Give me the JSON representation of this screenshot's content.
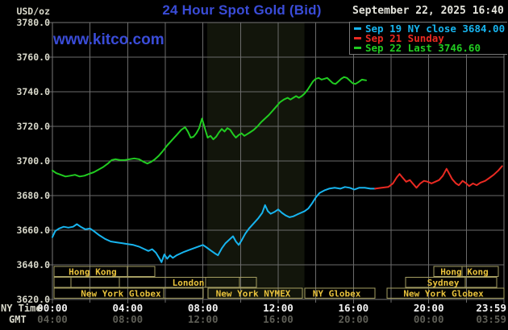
{
  "header": {
    "units_label": "USD/oz",
    "title": "24 Hour Spot Gold (Bid)",
    "datetime": "September 22, 2025 16:40",
    "watermark": "www.kitco.com"
  },
  "colors": {
    "title_blue": "#3a4cd8",
    "grid": "#6b6b6b",
    "border": "#787878",
    "band": "#12150b",
    "axis_text": "#d8d8ca",
    "ny_time_text": "#f4f4f4",
    "gmt_text": "#5e5e56",
    "session_border": "#a59e62",
    "session_text": "#e9c33c",
    "cyan": "#17b4ee",
    "red": "#ea2a22",
    "green": "#21cc21"
  },
  "legend": {
    "items": [
      {
        "label": "Sep 19 NY close 3684.00",
        "color": "#17b4ee"
      },
      {
        "label": "Sep 21 Sunday",
        "color": "#ea2a22"
      },
      {
        "label": "Sep 22 Last 3746.60",
        "color": "#21cc21"
      }
    ]
  },
  "axes": {
    "x_ny_label": "NY Time",
    "x_gmt_label": "GMT"
  },
  "sessions": {
    "rows": [
      {
        "boxes": [
          {
            "label": "Hong Kong",
            "start_h": 0.09,
            "end_h": 5.44,
            "dividers_h": [
              3.99
            ],
            "label_center_h": 2.14
          },
          {
            "label": "Hong Kong",
            "start_h": 20.27,
            "end_h": 23.7,
            "dividers_h": [
              21.77
            ],
            "label_center_h": 21.9
          }
        ]
      },
      {
        "boxes": [
          {
            "label": "London",
            "start_h": 0.09,
            "end_h": 10.84,
            "dividers_h": [
              0.99,
              3.56,
              8.14,
              9.94
            ],
            "label_center_h": 7.22
          },
          {
            "label": "Sydney",
            "start_h": 18.77,
            "end_h": 23.61,
            "dividers_h": [
              21.94
            ],
            "label_center_h": 20.77
          }
        ]
      },
      {
        "boxes": [
          {
            "label": "New York Globex",
            "start_h": 0.09,
            "end_h": 8.01,
            "dividers_h": [
              5.91
            ],
            "label_center_h": 3.64
          },
          {
            "label": "New York NYMEX",
            "start_h": 8.27,
            "end_h": 13.29,
            "dividers_h": [],
            "label_center_h": 10.67
          },
          {
            "label": "NY Globex",
            "start_h": 13.41,
            "end_h": 17.14,
            "dividers_h": [],
            "label_center_h": 15.11
          },
          {
            "label": "New York Globex",
            "start_h": 17.79,
            "end_h": 24.0,
            "dividers_h": [],
            "label_center_h": 20.79
          }
        ]
      }
    ]
  },
  "chart_data": {
    "type": "line",
    "title": "24 Hour Spot Gold (Bid)",
    "ylabel": "USD/oz",
    "grid": true,
    "legend_position": "top-right",
    "shaded_region_hours": [
      8.23,
      13.4
    ],
    "y_axis": {
      "range": [
        3620,
        3780
      ],
      "tick_step": 20,
      "tick_labels": [
        "3780.0",
        "3760.0",
        "3740.0",
        "3720.0",
        "3700.0",
        "3680.0",
        "3660.0",
        "3640.0",
        "3620.0"
      ]
    },
    "x_axis": {
      "range_hours": [
        0,
        24
      ],
      "tick_hours": [
        0,
        4,
        8,
        12,
        16,
        20,
        24
      ],
      "tick_labels_ny": [
        "00:00",
        "04:00",
        "08:00",
        "12:00",
        "16:00",
        "20:00",
        "23:59"
      ],
      "tick_labels_gmt": [
        "04:00",
        "08:00",
        "12:00",
        "16:00",
        "20:00",
        "00:00",
        "03:59"
      ]
    },
    "series": [
      {
        "id": "sep19",
        "name": "Sep 19 NY close 3684.00",
        "color": "#17b4ee",
        "points": [
          [
            0,
            3656
          ],
          [
            0.15,
            3659.5
          ],
          [
            0.35,
            3661
          ],
          [
            0.6,
            3662
          ],
          [
            0.85,
            3661.5
          ],
          [
            1.1,
            3662
          ],
          [
            1.3,
            3663.5
          ],
          [
            1.5,
            3662
          ],
          [
            1.75,
            3660.5
          ],
          [
            2,
            3661
          ],
          [
            2.2,
            3659.5
          ],
          [
            2.5,
            3657
          ],
          [
            2.8,
            3655
          ],
          [
            3.1,
            3653.5
          ],
          [
            3.4,
            3653
          ],
          [
            3.7,
            3652.5
          ],
          [
            4,
            3652
          ],
          [
            4.3,
            3651.5
          ],
          [
            4.6,
            3650.5
          ],
          [
            4.9,
            3649
          ],
          [
            5.1,
            3648
          ],
          [
            5.3,
            3649
          ],
          [
            5.5,
            3647
          ],
          [
            5.7,
            3643.5
          ],
          [
            5.8,
            3641.5
          ],
          [
            5.95,
            3646
          ],
          [
            6.1,
            3643.5
          ],
          [
            6.25,
            3645.5
          ],
          [
            6.4,
            3644
          ],
          [
            6.6,
            3645.5
          ],
          [
            6.8,
            3646.5
          ],
          [
            7,
            3647.5
          ],
          [
            7.25,
            3648.5
          ],
          [
            7.5,
            3649.5
          ],
          [
            7.75,
            3650.5
          ],
          [
            8,
            3651.5
          ],
          [
            8.2,
            3650
          ],
          [
            8.45,
            3648
          ],
          [
            8.65,
            3646.5
          ],
          [
            8.8,
            3645.5
          ],
          [
            9,
            3649.5
          ],
          [
            9.2,
            3652.5
          ],
          [
            9.45,
            3655
          ],
          [
            9.6,
            3656.5
          ],
          [
            9.75,
            3653.5
          ],
          [
            9.9,
            3651.5
          ],
          [
            10.05,
            3654
          ],
          [
            10.25,
            3658
          ],
          [
            10.45,
            3661
          ],
          [
            10.7,
            3664
          ],
          [
            10.95,
            3667
          ],
          [
            11.15,
            3670
          ],
          [
            11.3,
            3674.5
          ],
          [
            11.45,
            3671
          ],
          [
            11.6,
            3669.5
          ],
          [
            11.8,
            3670.5
          ],
          [
            12,
            3672
          ],
          [
            12.2,
            3670
          ],
          [
            12.4,
            3668.5
          ],
          [
            12.6,
            3667.5
          ],
          [
            12.8,
            3668
          ],
          [
            13,
            3669
          ],
          [
            13.2,
            3670
          ],
          [
            13.4,
            3671
          ],
          [
            13.6,
            3672.5
          ],
          [
            13.8,
            3675.5
          ],
          [
            14,
            3679
          ],
          [
            14.2,
            3681.5
          ],
          [
            14.45,
            3683
          ],
          [
            14.7,
            3684
          ],
          [
            15,
            3684.5
          ],
          [
            15.3,
            3684
          ],
          [
            15.55,
            3685
          ],
          [
            15.8,
            3684.5
          ],
          [
            16.05,
            3683.5
          ],
          [
            16.3,
            3684.5
          ],
          [
            16.6,
            3684.5
          ],
          [
            16.9,
            3684
          ],
          [
            17.15,
            3684
          ]
        ]
      },
      {
        "id": "sep21",
        "name": "Sep 21 Sunday",
        "color": "#ea2a22",
        "points": [
          [
            17.15,
            3684
          ],
          [
            17.5,
            3684.5
          ],
          [
            17.85,
            3685
          ],
          [
            18.1,
            3687
          ],
          [
            18.3,
            3690.5
          ],
          [
            18.45,
            3692.5
          ],
          [
            18.6,
            3690.5
          ],
          [
            18.8,
            3688
          ],
          [
            19,
            3689
          ],
          [
            19.15,
            3687
          ],
          [
            19.35,
            3684.5
          ],
          [
            19.55,
            3687
          ],
          [
            19.75,
            3688.5
          ],
          [
            19.95,
            3688
          ],
          [
            20.15,
            3687
          ],
          [
            20.35,
            3688
          ],
          [
            20.55,
            3689
          ],
          [
            20.75,
            3691.5
          ],
          [
            20.95,
            3695.5
          ],
          [
            21.1,
            3692.5
          ],
          [
            21.25,
            3689.5
          ],
          [
            21.45,
            3687
          ],
          [
            21.6,
            3686
          ],
          [
            21.8,
            3688.5
          ],
          [
            22,
            3687
          ],
          [
            22.15,
            3685.5
          ],
          [
            22.35,
            3687
          ],
          [
            22.55,
            3686
          ],
          [
            22.75,
            3687.5
          ],
          [
            23,
            3688.5
          ],
          [
            23.2,
            3690
          ],
          [
            23.45,
            3692
          ],
          [
            23.7,
            3694.5
          ],
          [
            23.9,
            3697
          ]
        ]
      },
      {
        "id": "sep22",
        "name": "Sep 22 Last 3746.60",
        "color": "#21cc21",
        "points": [
          [
            0,
            3694.5
          ],
          [
            0.2,
            3693
          ],
          [
            0.45,
            3692
          ],
          [
            0.7,
            3691
          ],
          [
            0.95,
            3691.5
          ],
          [
            1.2,
            3692
          ],
          [
            1.45,
            3691
          ],
          [
            1.7,
            3691.5
          ],
          [
            1.95,
            3692.5
          ],
          [
            2.2,
            3693.5
          ],
          [
            2.45,
            3695
          ],
          [
            2.7,
            3696.5
          ],
          [
            2.95,
            3698.5
          ],
          [
            3.15,
            3700.5
          ],
          [
            3.35,
            3701
          ],
          [
            3.6,
            3700.5
          ],
          [
            3.85,
            3700.5
          ],
          [
            4.1,
            3701
          ],
          [
            4.35,
            3701.5
          ],
          [
            4.6,
            3701
          ],
          [
            4.85,
            3699.5
          ],
          [
            5.05,
            3698.5
          ],
          [
            5.25,
            3699.5
          ],
          [
            5.45,
            3701
          ],
          [
            5.65,
            3703
          ],
          [
            5.85,
            3705.5
          ],
          [
            6.1,
            3709
          ],
          [
            6.35,
            3712
          ],
          [
            6.6,
            3715
          ],
          [
            6.85,
            3718
          ],
          [
            7.05,
            3719.5
          ],
          [
            7.2,
            3717
          ],
          [
            7.35,
            3713.5
          ],
          [
            7.5,
            3714
          ],
          [
            7.65,
            3716
          ],
          [
            7.8,
            3719
          ],
          [
            7.95,
            3724.5
          ],
          [
            8.1,
            3719
          ],
          [
            8.25,
            3713.5
          ],
          [
            8.4,
            3714.5
          ],
          [
            8.55,
            3712.5
          ],
          [
            8.7,
            3714
          ],
          [
            8.85,
            3716.5
          ],
          [
            9,
            3718.5
          ],
          [
            9.15,
            3717
          ],
          [
            9.3,
            3719
          ],
          [
            9.45,
            3718
          ],
          [
            9.6,
            3715.5
          ],
          [
            9.75,
            3713.5
          ],
          [
            9.9,
            3715
          ],
          [
            10.05,
            3716
          ],
          [
            10.2,
            3714.5
          ],
          [
            10.35,
            3715.5
          ],
          [
            10.5,
            3716.5
          ],
          [
            10.7,
            3718
          ],
          [
            10.9,
            3720
          ],
          [
            11.1,
            3722.5
          ],
          [
            11.3,
            3724.5
          ],
          [
            11.5,
            3726.5
          ],
          [
            11.7,
            3729
          ],
          [
            11.9,
            3731.5
          ],
          [
            12.1,
            3734
          ],
          [
            12.3,
            3735.5
          ],
          [
            12.5,
            3736.5
          ],
          [
            12.65,
            3735.5
          ],
          [
            12.8,
            3736.5
          ],
          [
            12.95,
            3737.5
          ],
          [
            13.1,
            3736.5
          ],
          [
            13.25,
            3737.5
          ],
          [
            13.4,
            3739
          ],
          [
            13.55,
            3741
          ],
          [
            13.7,
            3743.5
          ],
          [
            13.85,
            3746
          ],
          [
            14,
            3747.5
          ],
          [
            14.15,
            3748
          ],
          [
            14.3,
            3747
          ],
          [
            14.45,
            3747.5
          ],
          [
            14.6,
            3748
          ],
          [
            14.75,
            3746.5
          ],
          [
            14.9,
            3745
          ],
          [
            15.05,
            3744.5
          ],
          [
            15.2,
            3746
          ],
          [
            15.35,
            3747.5
          ],
          [
            15.5,
            3748.5
          ],
          [
            15.65,
            3748
          ],
          [
            15.8,
            3746.5
          ],
          [
            15.95,
            3745
          ],
          [
            16.1,
            3744.5
          ],
          [
            16.25,
            3745.5
          ],
          [
            16.45,
            3747
          ],
          [
            16.67,
            3746.6
          ]
        ]
      }
    ]
  }
}
